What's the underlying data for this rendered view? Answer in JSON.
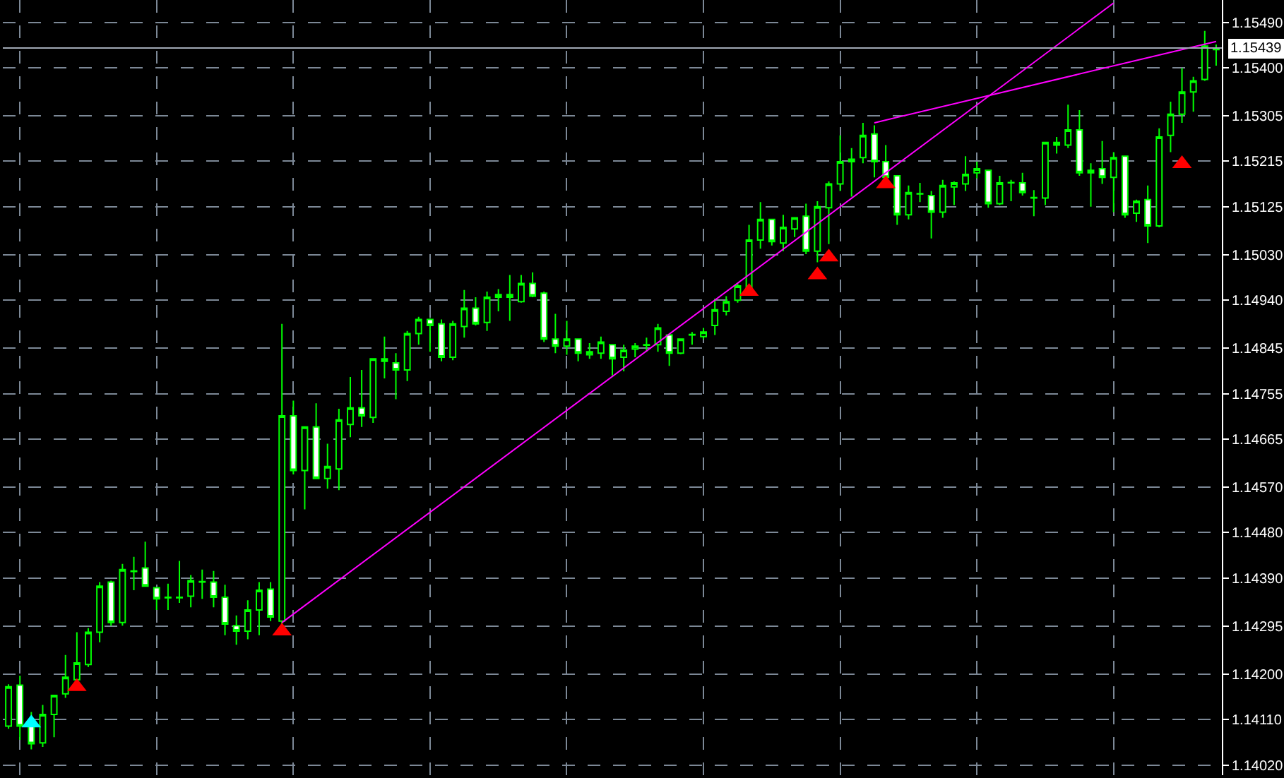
{
  "chart_data": {
    "type": "candlestick",
    "categories": [
      null,
      null,
      null,
      null,
      null,
      null,
      null,
      null,
      null,
      null,
      null,
      null,
      null,
      null,
      null,
      null,
      null,
      null,
      null,
      null,
      null,
      null,
      null,
      null,
      null,
      null,
      null,
      null,
      null,
      null,
      null,
      null,
      null,
      null,
      null,
      null,
      null,
      null,
      null,
      null,
      null,
      null,
      null,
      null,
      null,
      null,
      null,
      null,
      null,
      null,
      null,
      null,
      null,
      null,
      null,
      null,
      null,
      null,
      null,
      null,
      null,
      null,
      null,
      null,
      null,
      null,
      null,
      null,
      null,
      null,
      null,
      null,
      null,
      null,
      null,
      null,
      null,
      null,
      null,
      null,
      null,
      null,
      null,
      null,
      null,
      null,
      null,
      null,
      null,
      null,
      null,
      null,
      null,
      null,
      null,
      null,
      null,
      null,
      null,
      null,
      null,
      null,
      null,
      null,
      null,
      null,
      null
    ],
    "color": "#00ff00",
    "ohlc": [
      [
        1.14097,
        1.1418,
        1.14092,
        1.14175
      ],
      [
        1.14178,
        1.14197,
        1.1407,
        1.14097
      ],
      [
        1.14097,
        1.14125,
        1.14051,
        1.14062
      ],
      [
        1.14064,
        1.14139,
        1.14056,
        1.1412
      ],
      [
        1.1412,
        1.14158,
        1.14075,
        1.14158
      ],
      [
        1.14161,
        1.14238,
        1.14153,
        1.14194
      ],
      [
        1.14189,
        1.14283,
        1.1418,
        1.14222
      ],
      [
        1.14219,
        1.14291,
        1.14214,
        1.14283
      ],
      [
        1.14283,
        1.14382,
        1.14263,
        1.14374
      ],
      [
        1.14382,
        1.14385,
        1.14296,
        1.14302
      ],
      [
        1.14302,
        1.14418,
        1.14296,
        1.14407
      ],
      [
        1.14403,
        1.14432,
        1.14366,
        1.14404
      ],
      [
        1.1441,
        1.14462,
        1.14374,
        1.14374
      ],
      [
        1.14371,
        1.14371,
        1.14327,
        1.14349
      ],
      [
        1.14352,
        1.14379,
        1.14327,
        1.14351
      ],
      [
        1.14351,
        1.14424,
        1.14341,
        1.14352
      ],
      [
        1.14354,
        1.14396,
        1.14332,
        1.14385
      ],
      [
        1.14383,
        1.14407,
        1.14349,
        1.14382
      ],
      [
        1.14382,
        1.14404,
        1.14332,
        1.14352
      ],
      [
        1.14352,
        1.14377,
        1.14277,
        1.14299
      ],
      [
        1.14296,
        1.14316,
        1.14258,
        1.14285
      ],
      [
        1.14285,
        1.14346,
        1.14269,
        1.14327
      ],
      [
        1.14327,
        1.14382,
        1.14277,
        1.14366
      ],
      [
        1.14368,
        1.14382,
        1.14305,
        1.14313
      ],
      [
        1.14305,
        1.14893,
        1.14299,
        1.14711
      ],
      [
        1.14711,
        1.14741,
        1.14595,
        1.14603
      ],
      [
        1.14603,
        1.14689,
        1.14526,
        1.14689
      ],
      [
        1.14689,
        1.14736,
        1.14587,
        1.14587
      ],
      [
        1.14587,
        1.14656,
        1.14567,
        1.14611
      ],
      [
        1.14606,
        1.14725,
        1.14564,
        1.14703
      ],
      [
        1.14694,
        1.14788,
        1.14669,
        1.14727
      ],
      [
        1.14727,
        1.14802,
        1.14689,
        1.14711
      ],
      [
        1.14708,
        1.14824,
        1.14697,
        1.14824
      ],
      [
        1.14824,
        1.14868,
        1.14785,
        1.14819
      ],
      [
        1.14816,
        1.14835,
        1.14744,
        1.14802
      ],
      [
        1.14802,
        1.14879,
        1.1478,
        1.14874
      ],
      [
        1.14874,
        1.14907,
        1.14852,
        1.14902
      ],
      [
        1.14902,
        1.14904,
        1.14838,
        1.1489
      ],
      [
        1.14893,
        1.14902,
        1.14819,
        1.14827
      ],
      [
        1.14827,
        1.14899,
        1.14821,
        1.14893
      ],
      [
        1.14888,
        1.1496,
        1.14866,
        1.14924
      ],
      [
        1.14924,
        1.14946,
        1.1489,
        1.14893
      ],
      [
        1.14896,
        1.14957,
        1.14879,
        1.14946
      ],
      [
        1.14946,
        1.14962,
        1.14918,
        1.14951
      ],
      [
        1.14946,
        1.1499,
        1.14899,
        1.14951
      ],
      [
        1.14937,
        1.1499,
        1.14935,
        1.14973
      ],
      [
        1.14973,
        1.14995,
        1.14946,
        1.14948
      ],
      [
        1.14954,
        1.14957,
        1.14857,
        1.14863
      ],
      [
        1.14863,
        1.14913,
        1.14835,
        1.14849
      ],
      [
        1.14849,
        1.14899,
        1.14832,
        1.14863
      ],
      [
        1.14863,
        1.14863,
        1.14819,
        1.14835
      ],
      [
        1.14832,
        1.14855,
        1.14824,
        1.14838
      ],
      [
        1.14835,
        1.14868,
        1.14824,
        1.14857
      ],
      [
        1.14852,
        1.14852,
        1.14791,
        1.14824
      ],
      [
        1.14827,
        1.14852,
        1.14799,
        1.14841
      ],
      [
        1.14843,
        1.14855,
        1.14827,
        1.14849
      ],
      [
        1.14851,
        1.14866,
        1.14838,
        1.14852
      ],
      [
        1.14852,
        1.14893,
        1.14838,
        1.14885
      ],
      [
        1.14871,
        1.14874,
        1.1481,
        1.14835
      ],
      [
        1.14835,
        1.14863,
        1.14833,
        1.14863
      ],
      [
        1.14871,
        1.14877,
        1.14852,
        1.14872
      ],
      [
        1.14868,
        1.14885,
        1.14863,
        1.14877
      ],
      [
        1.1489,
        1.14943,
        1.14871,
        1.14921
      ],
      [
        1.14918,
        1.14948,
        1.1491,
        1.14937
      ],
      [
        1.1494,
        1.14973,
        1.14935,
        1.14968
      ],
      [
        1.14965,
        1.15089,
        1.1496,
        1.15059
      ],
      [
        1.15059,
        1.15134,
        1.15042,
        1.151
      ],
      [
        1.151,
        1.151,
        1.15048,
        1.15056
      ],
      [
        1.15053,
        1.15109,
        1.15037,
        1.15084
      ],
      [
        1.15081,
        1.15103,
        1.15065,
        1.15103
      ],
      [
        1.15106,
        1.15131,
        1.15031,
        1.15037
      ],
      [
        1.15037,
        1.15136,
        1.15015,
        1.15125
      ],
      [
        1.15123,
        1.15175,
        1.15051,
        1.1517
      ],
      [
        1.1517,
        1.15266,
        1.15156,
        1.15214
      ],
      [
        1.15214,
        1.15241,
        1.15145,
        1.15219
      ],
      [
        1.15222,
        1.15291,
        1.15211,
        1.15266
      ],
      [
        1.15269,
        1.15286,
        1.15183,
        1.15214
      ],
      [
        1.15214,
        1.15247,
        1.15175,
        1.15183
      ],
      [
        1.15186,
        1.15186,
        1.15089,
        1.15109
      ],
      [
        1.15109,
        1.15167,
        1.151,
        1.15153
      ],
      [
        1.1515,
        1.15172,
        1.15134,
        1.15151
      ],
      [
        1.15147,
        1.15156,
        1.15062,
        1.15114
      ],
      [
        1.15114,
        1.15178,
        1.15103,
        1.15167
      ],
      [
        1.15164,
        1.15175,
        1.15128,
        1.15172
      ],
      [
        1.1517,
        1.15225,
        1.15156,
        1.15189
      ],
      [
        1.15192,
        1.15214,
        1.15181,
        1.152
      ],
      [
        1.15197,
        1.15197,
        1.15123,
        1.15131
      ],
      [
        1.15131,
        1.15186,
        1.15128,
        1.15172
      ],
      [
        1.15172,
        1.15178,
        1.15136,
        1.15173
      ],
      [
        1.15172,
        1.15192,
        1.15147,
        1.15153
      ],
      [
        1.15142,
        1.15158,
        1.15106,
        1.15143
      ],
      [
        1.15142,
        1.15252,
        1.15128,
        1.15252
      ],
      [
        1.15247,
        1.15263,
        1.1523,
        1.15252
      ],
      [
        1.15247,
        1.15327,
        1.15241,
        1.15277
      ],
      [
        1.15277,
        1.15316,
        1.15186,
        1.15192
      ],
      [
        1.15192,
        1.15211,
        1.15125,
        1.15197
      ],
      [
        1.152,
        1.15255,
        1.1517,
        1.15183
      ],
      [
        1.15183,
        1.15233,
        1.15114,
        1.15222
      ],
      [
        1.15225,
        1.15225,
        1.15103,
        1.15109
      ],
      [
        1.15112,
        1.15139,
        1.15095,
        1.15136
      ],
      [
        1.15139,
        1.15167,
        1.15053,
        1.15087
      ],
      [
        1.15087,
        1.1528,
        1.15084,
        1.15263
      ],
      [
        1.15266,
        1.15333,
        1.15233,
        1.15308
      ],
      [
        1.15308,
        1.15399,
        1.15291,
        1.15352
      ],
      [
        1.15352,
        1.15382,
        1.15313,
        1.15374
      ],
      [
        1.15377,
        1.15473,
        1.15374,
        1.15443
      ],
      [
        1.15436,
        1.15446,
        1.15404,
        1.15439
      ]
    ],
    "series": [
      {
        "type": "line",
        "color": "#ff00ff",
        "values": [
          null,
          null,
          null,
          null,
          null,
          null,
          null,
          null,
          null,
          null,
          null,
          null,
          null,
          null,
          null,
          null,
          null,
          null,
          null,
          null,
          null,
          null,
          null,
          null,
          1.14302,
          null,
          null,
          null,
          null,
          null,
          null,
          null,
          null,
          null,
          null,
          null,
          null,
          null,
          null,
          null,
          null,
          null,
          null,
          null,
          null,
          null,
          null,
          null,
          null,
          null,
          null,
          null,
          null,
          null,
          null,
          null,
          null,
          null,
          null,
          null,
          null,
          null,
          null,
          null,
          null,
          null,
          null,
          null,
          null,
          null,
          null,
          null,
          null,
          null,
          null,
          null,
          null,
          null,
          null,
          null,
          null,
          null,
          null,
          null,
          null,
          null,
          null,
          null,
          null,
          null,
          null,
          null,
          null,
          null,
          null,
          null,
          null,
          1.15528,
          null,
          null,
          null,
          null,
          null,
          null,
          null,
          null,
          null
        ]
      },
      {
        "type": "line",
        "color": "#ff00ff",
        "values": [
          null,
          null,
          null,
          null,
          null,
          null,
          null,
          null,
          null,
          null,
          null,
          null,
          null,
          null,
          null,
          null,
          null,
          null,
          null,
          null,
          null,
          null,
          null,
          null,
          null,
          null,
          null,
          null,
          null,
          null,
          null,
          null,
          null,
          null,
          null,
          null,
          null,
          null,
          null,
          null,
          null,
          null,
          null,
          null,
          null,
          null,
          null,
          null,
          null,
          null,
          null,
          null,
          null,
          null,
          null,
          null,
          null,
          null,
          null,
          null,
          null,
          null,
          null,
          null,
          null,
          null,
          null,
          null,
          null,
          null,
          null,
          null,
          null,
          null,
          null,
          null,
          1.15291,
          null,
          null,
          null,
          null,
          null,
          null,
          null,
          null,
          null,
          null,
          null,
          null,
          null,
          null,
          null,
          null,
          null,
          null,
          null,
          null,
          null,
          null,
          null,
          null,
          null,
          null,
          null,
          null,
          null,
          1.15452
        ]
      },
      {
        "type": "scatter",
        "color": "#ff0000",
        "marker": "triangle",
        "values": [
          null,
          null,
          null,
          null,
          null,
          null,
          1.14175,
          null,
          null,
          null,
          null,
          null,
          null,
          null,
          null,
          null,
          null,
          null,
          null,
          null,
          null,
          null,
          null,
          null,
          1.14285,
          null,
          null,
          null,
          null,
          null,
          null,
          null,
          null,
          null,
          null,
          null,
          null,
          null,
          null,
          null,
          null,
          null,
          null,
          null,
          null,
          null,
          null,
          null,
          null,
          null,
          null,
          null,
          null,
          null,
          null,
          null,
          null,
          null,
          null,
          null,
          null,
          null,
          null,
          null,
          null,
          1.14957,
          null,
          null,
          null,
          null,
          null,
          1.1499,
          1.15025,
          null,
          null,
          null,
          null,
          1.1517,
          null,
          null,
          null,
          null,
          null,
          null,
          null,
          null,
          null,
          null,
          null,
          null,
          null,
          null,
          null,
          null,
          null,
          null,
          null,
          null,
          null,
          null,
          null,
          null,
          null,
          1.1521,
          null,
          null,
          null
        ]
      },
      {
        "type": "scatter",
        "color": "#00ffff",
        "marker": "triangle",
        "values": [
          null,
          null,
          1.14103,
          null,
          null,
          null,
          null,
          null,
          null,
          null,
          null,
          null,
          null,
          null,
          null,
          null,
          null,
          null,
          null,
          null,
          null,
          null,
          null,
          null,
          null,
          null,
          null,
          null,
          null,
          null,
          null,
          null,
          null,
          null,
          null,
          null,
          null,
          null,
          null,
          null,
          null,
          null,
          null,
          null,
          null,
          null,
          null,
          null,
          null,
          null,
          null,
          null,
          null,
          null,
          null,
          null,
          null,
          null,
          null,
          null,
          null,
          null,
          null,
          null,
          null,
          null,
          null,
          null,
          null,
          null,
          null,
          null,
          null,
          null,
          null,
          null,
          null,
          null,
          null,
          null,
          null,
          null,
          null,
          null,
          null,
          null,
          null,
          null,
          null,
          null,
          null,
          null,
          null,
          null,
          null,
          null,
          null,
          null,
          null,
          null,
          null,
          null,
          null,
          null,
          null,
          null,
          null
        ]
      }
    ],
    "ylim": [
      1.14,
      1.15534
    ],
    "yticks": [
      {
        "value": 1.1549,
        "label": "1.15490"
      },
      {
        "value": 1.154,
        "label": "1.15400"
      },
      {
        "value": 1.15305,
        "label": "1.15305"
      },
      {
        "value": 1.15215,
        "label": "1.15215"
      },
      {
        "value": 1.15125,
        "label": "1.15125"
      },
      {
        "value": 1.1503,
        "label": "1.15030"
      },
      {
        "value": 1.1494,
        "label": "1.14940"
      },
      {
        "value": 1.14845,
        "label": "1.14845"
      },
      {
        "value": 1.14755,
        "label": "1.14755"
      },
      {
        "value": 1.14665,
        "label": "1.14665"
      },
      {
        "value": 1.1457,
        "label": "1.14570"
      },
      {
        "value": 1.1448,
        "label": "1.14480"
      },
      {
        "value": 1.1439,
        "label": "1.14390"
      },
      {
        "value": 1.14295,
        "label": "1.14295"
      },
      {
        "value": 1.142,
        "label": "1.14200"
      },
      {
        "value": 1.1411,
        "label": "1.14110"
      },
      {
        "value": 1.1402,
        "label": "1.14020"
      }
    ],
    "grid": true,
    "tick_labels": "y",
    "ref_lines": [
      {
        "axis": "y",
        "value": 1.15439,
        "label": "1.15439",
        "color": "#a0a8b4"
      }
    ]
  }
}
